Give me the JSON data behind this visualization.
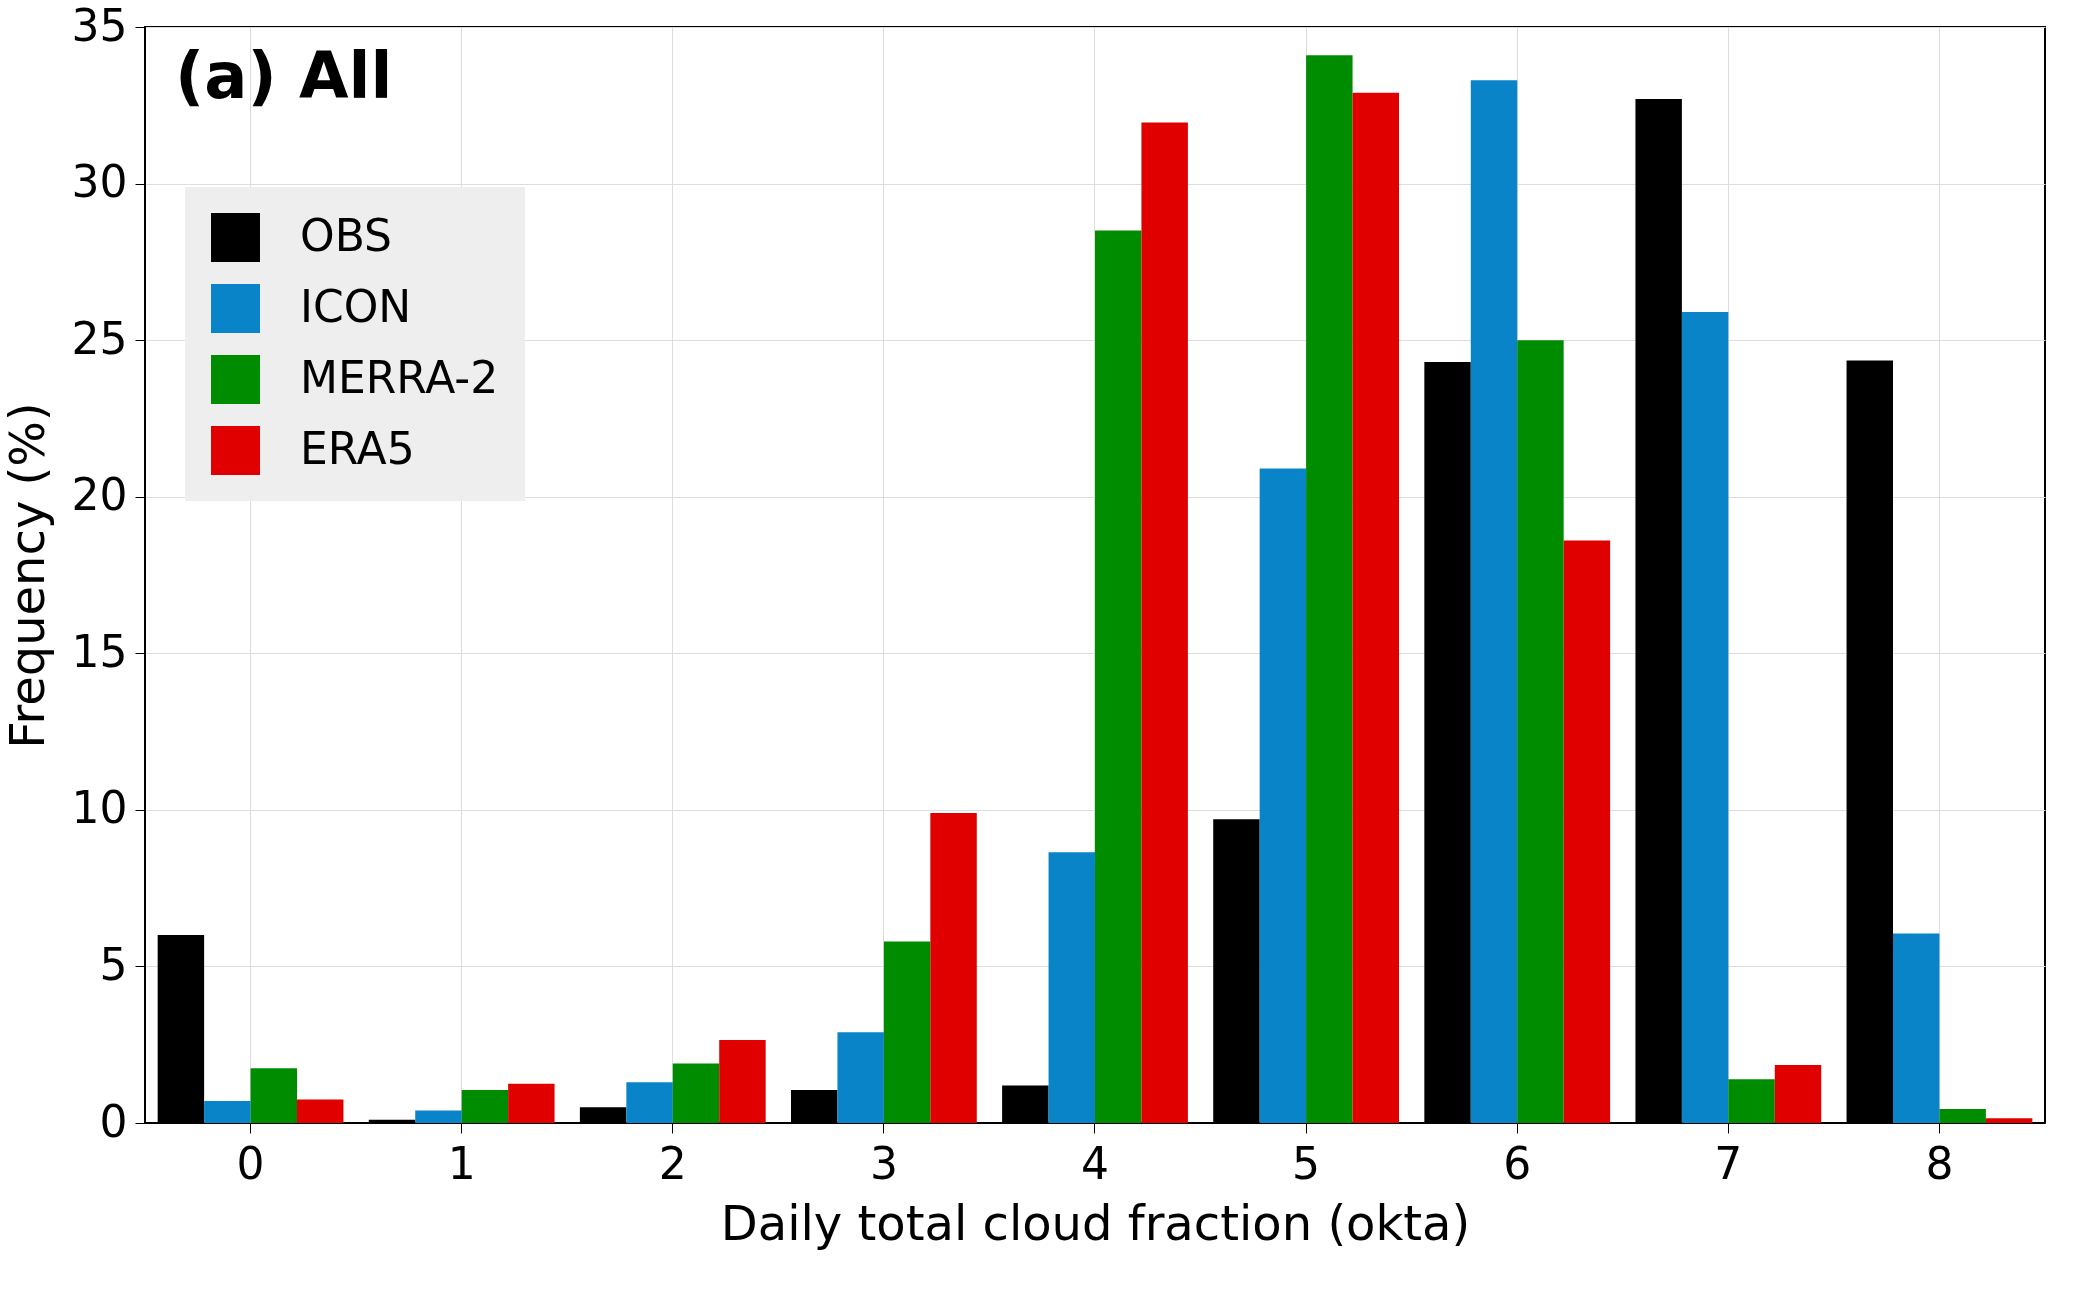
{
  "chart_data": {
    "type": "bar",
    "xlabel": "Daily total cloud fraction (okta)",
    "ylabel": "Frequency (%)",
    "annotations": [
      "(a) All"
    ],
    "categories": [
      "0",
      "1",
      "2",
      "3",
      "4",
      "5",
      "6",
      "7",
      "8"
    ],
    "series": [
      {
        "name": "OBS",
        "color": "#000000",
        "values": [
          6.0,
          0.1,
          0.5,
          1.05,
          1.2,
          9.7,
          24.3,
          32.7,
          24.35
        ]
      },
      {
        "name": "ICON",
        "color": "#0a84c8",
        "values": [
          0.7,
          0.4,
          1.3,
          2.9,
          8.65,
          20.9,
          33.3,
          25.9,
          6.05
        ]
      },
      {
        "name": "MERRA-2",
        "color": "#008c00",
        "values": [
          1.75,
          1.05,
          1.9,
          5.8,
          28.5,
          34.1,
          25.0,
          1.4,
          0.45
        ]
      },
      {
        "name": "ERA5",
        "color": "#e00000",
        "values": [
          0.75,
          1.25,
          2.65,
          9.9,
          31.95,
          32.9,
          18.6,
          1.85,
          0.15
        ]
      }
    ],
    "ylim": [
      0,
      35
    ],
    "yticks": [
      0,
      5,
      10,
      15,
      20,
      25,
      30,
      35
    ],
    "grid": true,
    "legend": "top left"
  }
}
